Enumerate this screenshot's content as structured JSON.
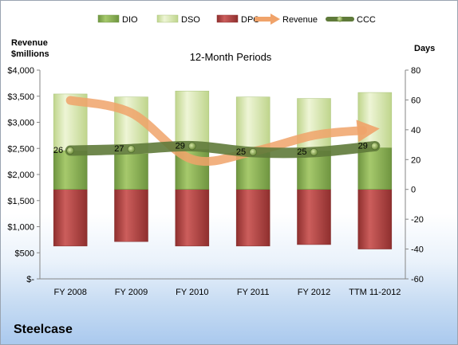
{
  "company": "Steelcase",
  "chart_data": {
    "type": "bar",
    "title": "12-Month Periods",
    "categories": [
      "FY 2008",
      "FY 2009",
      "FY 2010",
      "FY 2011",
      "FY 2012",
      "TTM 11-2012"
    ],
    "left_axis": {
      "label_line1": "Revenue",
      "label_line2": "$millions",
      "range": [
        0,
        4000
      ],
      "ticks": [
        0,
        500,
        1000,
        1500,
        2000,
        2500,
        3000,
        3500,
        4000
      ],
      "tick_labels": [
        "$-",
        "$500",
        "$1,000",
        "$1,500",
        "$2,000",
        "$2,500",
        "$3,000",
        "$3,500",
        "$4,000"
      ]
    },
    "right_axis": {
      "label": "Days",
      "range": [
        -60,
        80
      ],
      "ticks": [
        -60,
        -40,
        -20,
        0,
        20,
        40,
        60,
        80
      ],
      "tick_labels": [
        "-60",
        "-40",
        "-20",
        "0",
        "20",
        "40",
        "60",
        "80"
      ]
    },
    "legend": [
      "DIO",
      "DSO",
      "DPO",
      "Revenue",
      "CCC"
    ],
    "legend_position": "top",
    "series": [
      {
        "name": "DIO",
        "axis": "right",
        "kind": "stacked-bar",
        "values": [
          26,
          24,
          27,
          25,
          26,
          28
        ],
        "color": "#8fb55a"
      },
      {
        "name": "DSO",
        "axis": "right",
        "kind": "stacked-bar",
        "values": [
          38,
          38,
          39,
          37,
          35,
          37
        ],
        "color": "#d7e7ad"
      },
      {
        "name": "DPO",
        "axis": "right",
        "kind": "stacked-bar-negative",
        "values": [
          -38,
          -35,
          -38,
          -38,
          -37,
          -40
        ],
        "color": "#b94a48"
      },
      {
        "name": "Revenue",
        "axis": "left",
        "kind": "smooth-line-arrow",
        "values": [
          3420,
          3180,
          2290,
          2440,
          2750,
          2870
        ],
        "color": "#f0a36a"
      },
      {
        "name": "CCC",
        "axis": "right",
        "kind": "line-markers",
        "values": [
          26,
          27,
          29,
          25,
          25,
          29
        ],
        "labels": [
          "26",
          "27",
          "29",
          "25",
          "25",
          "29"
        ],
        "color": "#5f7a3a"
      }
    ]
  }
}
